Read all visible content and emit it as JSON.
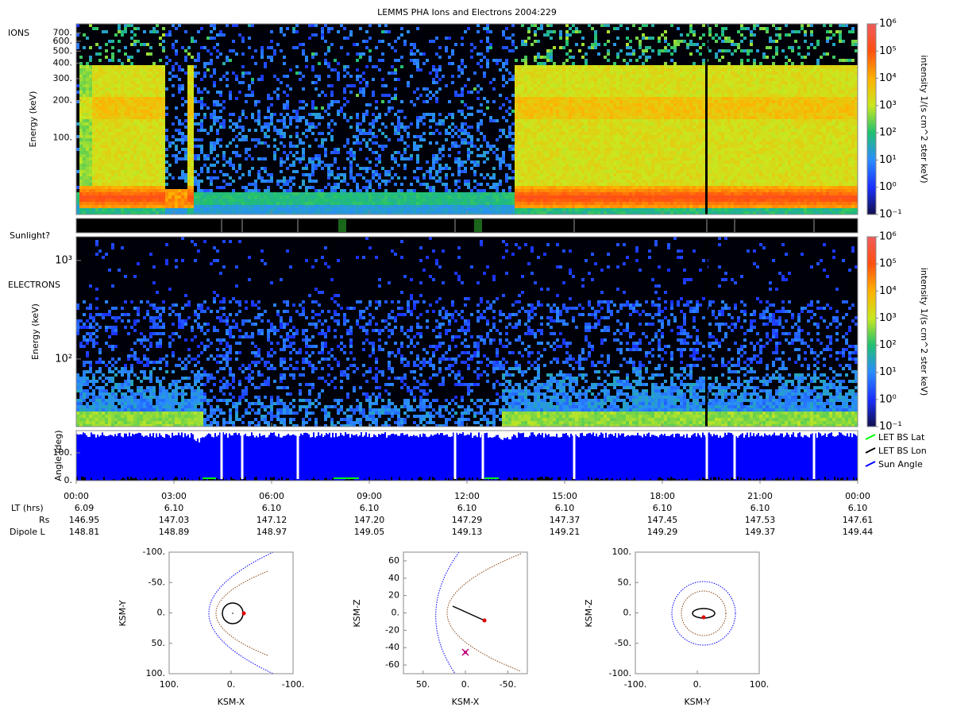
{
  "title": "LEMMS PHA Ions and Electrons  2004:229",
  "chart_data": [
    {
      "type": "heatmap",
      "label": "IONS",
      "ylabel": "Energy (keV)",
      "ylog": true,
      "ylim": [
        24,
        830
      ],
      "yticks": [
        {
          "value": 100,
          "label": "100."
        },
        {
          "value": 200,
          "label": "200."
        },
        {
          "value": 300,
          "label": "300."
        },
        {
          "value": 400,
          "label": "400."
        },
        {
          "value": 500,
          "label": "500."
        },
        {
          "value": 600,
          "label": "600."
        },
        {
          "value": 700,
          "label": "700."
        }
      ],
      "colorbar": {
        "label": "intensity 1/(s cm^2 ster keV)",
        "log": true,
        "lim": [
          0.1,
          1000000
        ],
        "ticks": [
          {
            "value": 0.1,
            "label": "10⁻¹"
          },
          {
            "value": 1,
            "label": "10⁰"
          },
          {
            "value": 10,
            "label": "10¹"
          },
          {
            "value": 100,
            "label": "10²"
          },
          {
            "value": 1000,
            "label": "10³"
          },
          {
            "value": 10000,
            "label": "10⁴"
          },
          {
            "value": 100000,
            "label": "10⁵"
          },
          {
            "value": 1000000,
            "label": "10⁶"
          }
        ]
      }
    },
    {
      "type": "strip",
      "label": "Sunlight?"
    },
    {
      "type": "heatmap",
      "label": "ELECTRONS",
      "ylabel": "Energy (keV)",
      "ylog": true,
      "ylim": [
        20.6,
        1740
      ],
      "yticks": [
        {
          "value": 100,
          "label": "10²"
        },
        {
          "value": 1000,
          "label": "10³"
        }
      ],
      "colorbar": {
        "label": "intensity 1/(s cm^2 ster keV)",
        "log": true,
        "lim": [
          0.1,
          1000000
        ],
        "ticks": [
          {
            "value": 0.1,
            "label": "10⁻¹"
          },
          {
            "value": 1,
            "label": "10⁰"
          },
          {
            "value": 10,
            "label": "10¹"
          },
          {
            "value": 100,
            "label": "10²"
          },
          {
            "value": 1000,
            "label": "10³"
          },
          {
            "value": 10000,
            "label": "10⁴"
          },
          {
            "value": 100000,
            "label": "10⁵"
          },
          {
            "value": 1000000,
            "label": "10⁶"
          }
        ]
      }
    },
    {
      "type": "line",
      "ylabel": "Angle (deg)",
      "ylim": [
        0,
        180
      ],
      "yticks": [
        {
          "value": 0,
          "label": "0."
        },
        {
          "value": 100,
          "label": "100."
        }
      ],
      "categories": [
        "00:00",
        "03:00",
        "06:00",
        "09:00",
        "12:00",
        "15:00",
        "18:00",
        "21:00",
        "00:00"
      ],
      "series": [
        {
          "name": "LET BS Lat",
          "color": "#00ff00"
        },
        {
          "name": "LET BS Lon",
          "color": "#000000"
        },
        {
          "name": "Sun Angle",
          "color": "#0000ff"
        }
      ],
      "rows": [
        {
          "name": "LT (hrs)",
          "values": [
            6.09,
            {
              "value": 6.1,
              "label": "6.10"
            },
            {
              "value": 6.1,
              "label": "6.10"
            },
            {
              "value": 6.1,
              "label": "6.10"
            },
            {
              "value": 6.1,
              "label": "6.10"
            },
            {
              "value": 6.1,
              "label": "6.10"
            },
            {
              "value": 6.1,
              "label": "6.10"
            },
            {
              "value": 6.1,
              "label": "6.10"
            },
            {
              "value": 6.1,
              "label": "6.10"
            }
          ]
        },
        {
          "name": "Rs",
          "values": [
            146.95,
            147.03,
            147.12,
            {
              "value": 147.2,
              "label": "147.20"
            },
            147.29,
            147.37,
            147.45,
            147.53,
            147.61
          ]
        },
        {
          "name": "Dipole L",
          "values": [
            148.81,
            148.89,
            148.97,
            149.05,
            149.13,
            149.21,
            149.29,
            149.37,
            149.44
          ]
        }
      ]
    },
    {
      "type": "scatter",
      "xlabel": "KSM-X",
      "ylabel": "KSM-Y",
      "xlim": [
        100,
        -100
      ],
      "ylim": [
        100,
        -100
      ],
      "xticks": [
        {
          "value": 100,
          "label": "100."
        },
        {
          "value": 0,
          "label": "0."
        },
        {
          "value": -100,
          "label": "-100."
        }
      ],
      "yticks": [
        {
          "value": -100,
          "label": "-100."
        },
        {
          "value": -50,
          "label": "-50."
        },
        {
          "value": 0,
          "label": "0."
        },
        {
          "value": 50,
          "label": "50."
        },
        {
          "value": 100,
          "label": "100."
        }
      ]
    },
    {
      "type": "scatter",
      "xlabel": "KSM-X",
      "ylabel": "KSM-Z",
      "xlim": [
        73,
        -73
      ],
      "ylim": [
        -70,
        70
      ],
      "xticks": [
        {
          "value": 50,
          "label": "50."
        },
        {
          "value": 0,
          "label": "0."
        },
        {
          "value": -50,
          "label": "-50."
        }
      ],
      "yticks": [
        60,
        40,
        20,
        {
          "value": 0,
          "label": "0."
        },
        -20,
        -40,
        -60
      ]
    },
    {
      "type": "scatter",
      "xlabel": "KSM-Y",
      "ylabel": "KSM-Z",
      "xlim": [
        -100,
        100
      ],
      "ylim": [
        -100,
        100
      ],
      "xticks": [
        {
          "value": -100,
          "label": "-100."
        },
        {
          "value": 0,
          "label": "0."
        },
        {
          "value": 100,
          "label": "100."
        }
      ],
      "yticks": [
        {
          "value": 100,
          "label": "100."
        },
        {
          "value": 50,
          "label": "50."
        },
        {
          "value": 0,
          "label": "0."
        },
        {
          "value": -50,
          "label": "-50."
        },
        {
          "value": -100,
          "label": "-100."
        }
      ]
    }
  ]
}
